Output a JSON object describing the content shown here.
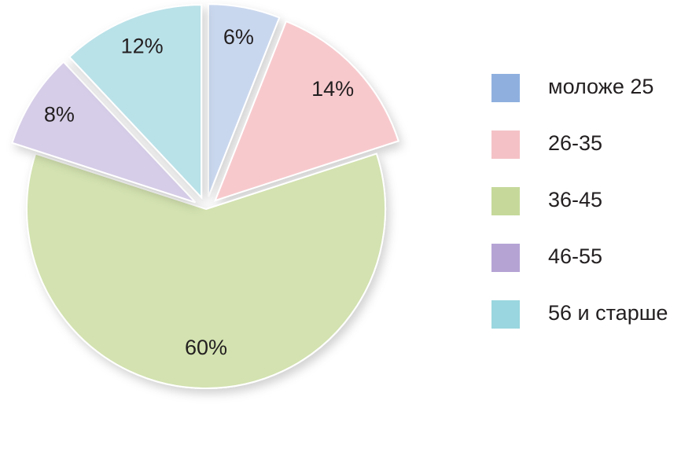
{
  "chart_data": {
    "type": "pie",
    "categories": [
      "моложе 25",
      "26-35",
      "36-45",
      "46-55",
      "56 и старше"
    ],
    "values": [
      6,
      14,
      60,
      8,
      12
    ],
    "value_labels": [
      "6%",
      "14%",
      "60%",
      "8%",
      "12%"
    ],
    "colors": [
      "#c9d7ee",
      "#f7c9cd",
      "#d3e2b0",
      "#d6cde8",
      "#b9e1e8"
    ],
    "legend_colors": [
      "#8fb0df",
      "#f4c2c6",
      "#c6d99b",
      "#b5a3d4",
      "#9ad6df"
    ],
    "legend": "right"
  }
}
